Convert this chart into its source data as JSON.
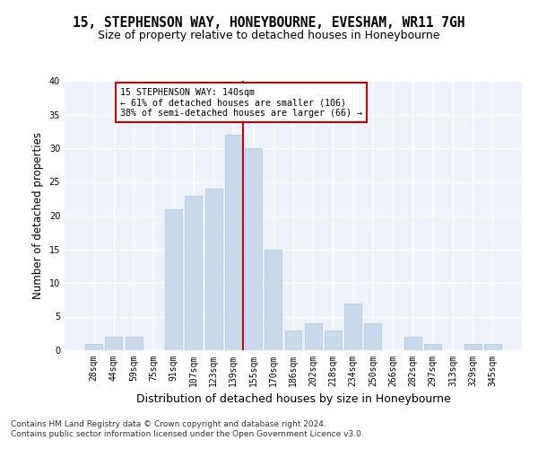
{
  "title": "15, STEPHENSON WAY, HONEYBOURNE, EVESHAM, WR11 7GH",
  "subtitle": "Size of property relative to detached houses in Honeybourne",
  "xlabel": "Distribution of detached houses by size in Honeybourne",
  "ylabel": "Number of detached properties",
  "categories": [
    "28sqm",
    "44sqm",
    "59sqm",
    "75sqm",
    "91sqm",
    "107sqm",
    "123sqm",
    "139sqm",
    "155sqm",
    "170sqm",
    "186sqm",
    "202sqm",
    "218sqm",
    "234sqm",
    "250sqm",
    "266sqm",
    "282sqm",
    "297sqm",
    "313sqm",
    "329sqm",
    "345sqm"
  ],
  "values": [
    1,
    2,
    2,
    0,
    21,
    23,
    24,
    32,
    30,
    15,
    3,
    4,
    3,
    7,
    4,
    0,
    2,
    1,
    0,
    1,
    1
  ],
  "bar_color": "#c9d9ec",
  "bar_edgecolor": "#a8c4df",
  "vline_color": "#cc0000",
  "annotation_title": "15 STEPHENSON WAY: 140sqm",
  "annotation_line1": "← 61% of detached houses are smaller (106)",
  "annotation_line2": "38% of semi-detached houses are larger (66) →",
  "annotation_box_color": "#cc0000",
  "ylim": [
    0,
    40
  ],
  "yticks": [
    0,
    5,
    10,
    15,
    20,
    25,
    30,
    35,
    40
  ],
  "footer_line1": "Contains HM Land Registry data © Crown copyright and database right 2024.",
  "footer_line2": "Contains public sector information licensed under the Open Government Licence v3.0.",
  "bg_color": "#ffffff",
  "plot_bg_color": "#eef3fb",
  "title_fontsize": 10.5,
  "subtitle_fontsize": 9,
  "tick_fontsize": 7,
  "ylabel_fontsize": 8.5,
  "xlabel_fontsize": 9,
  "footer_fontsize": 6.5
}
